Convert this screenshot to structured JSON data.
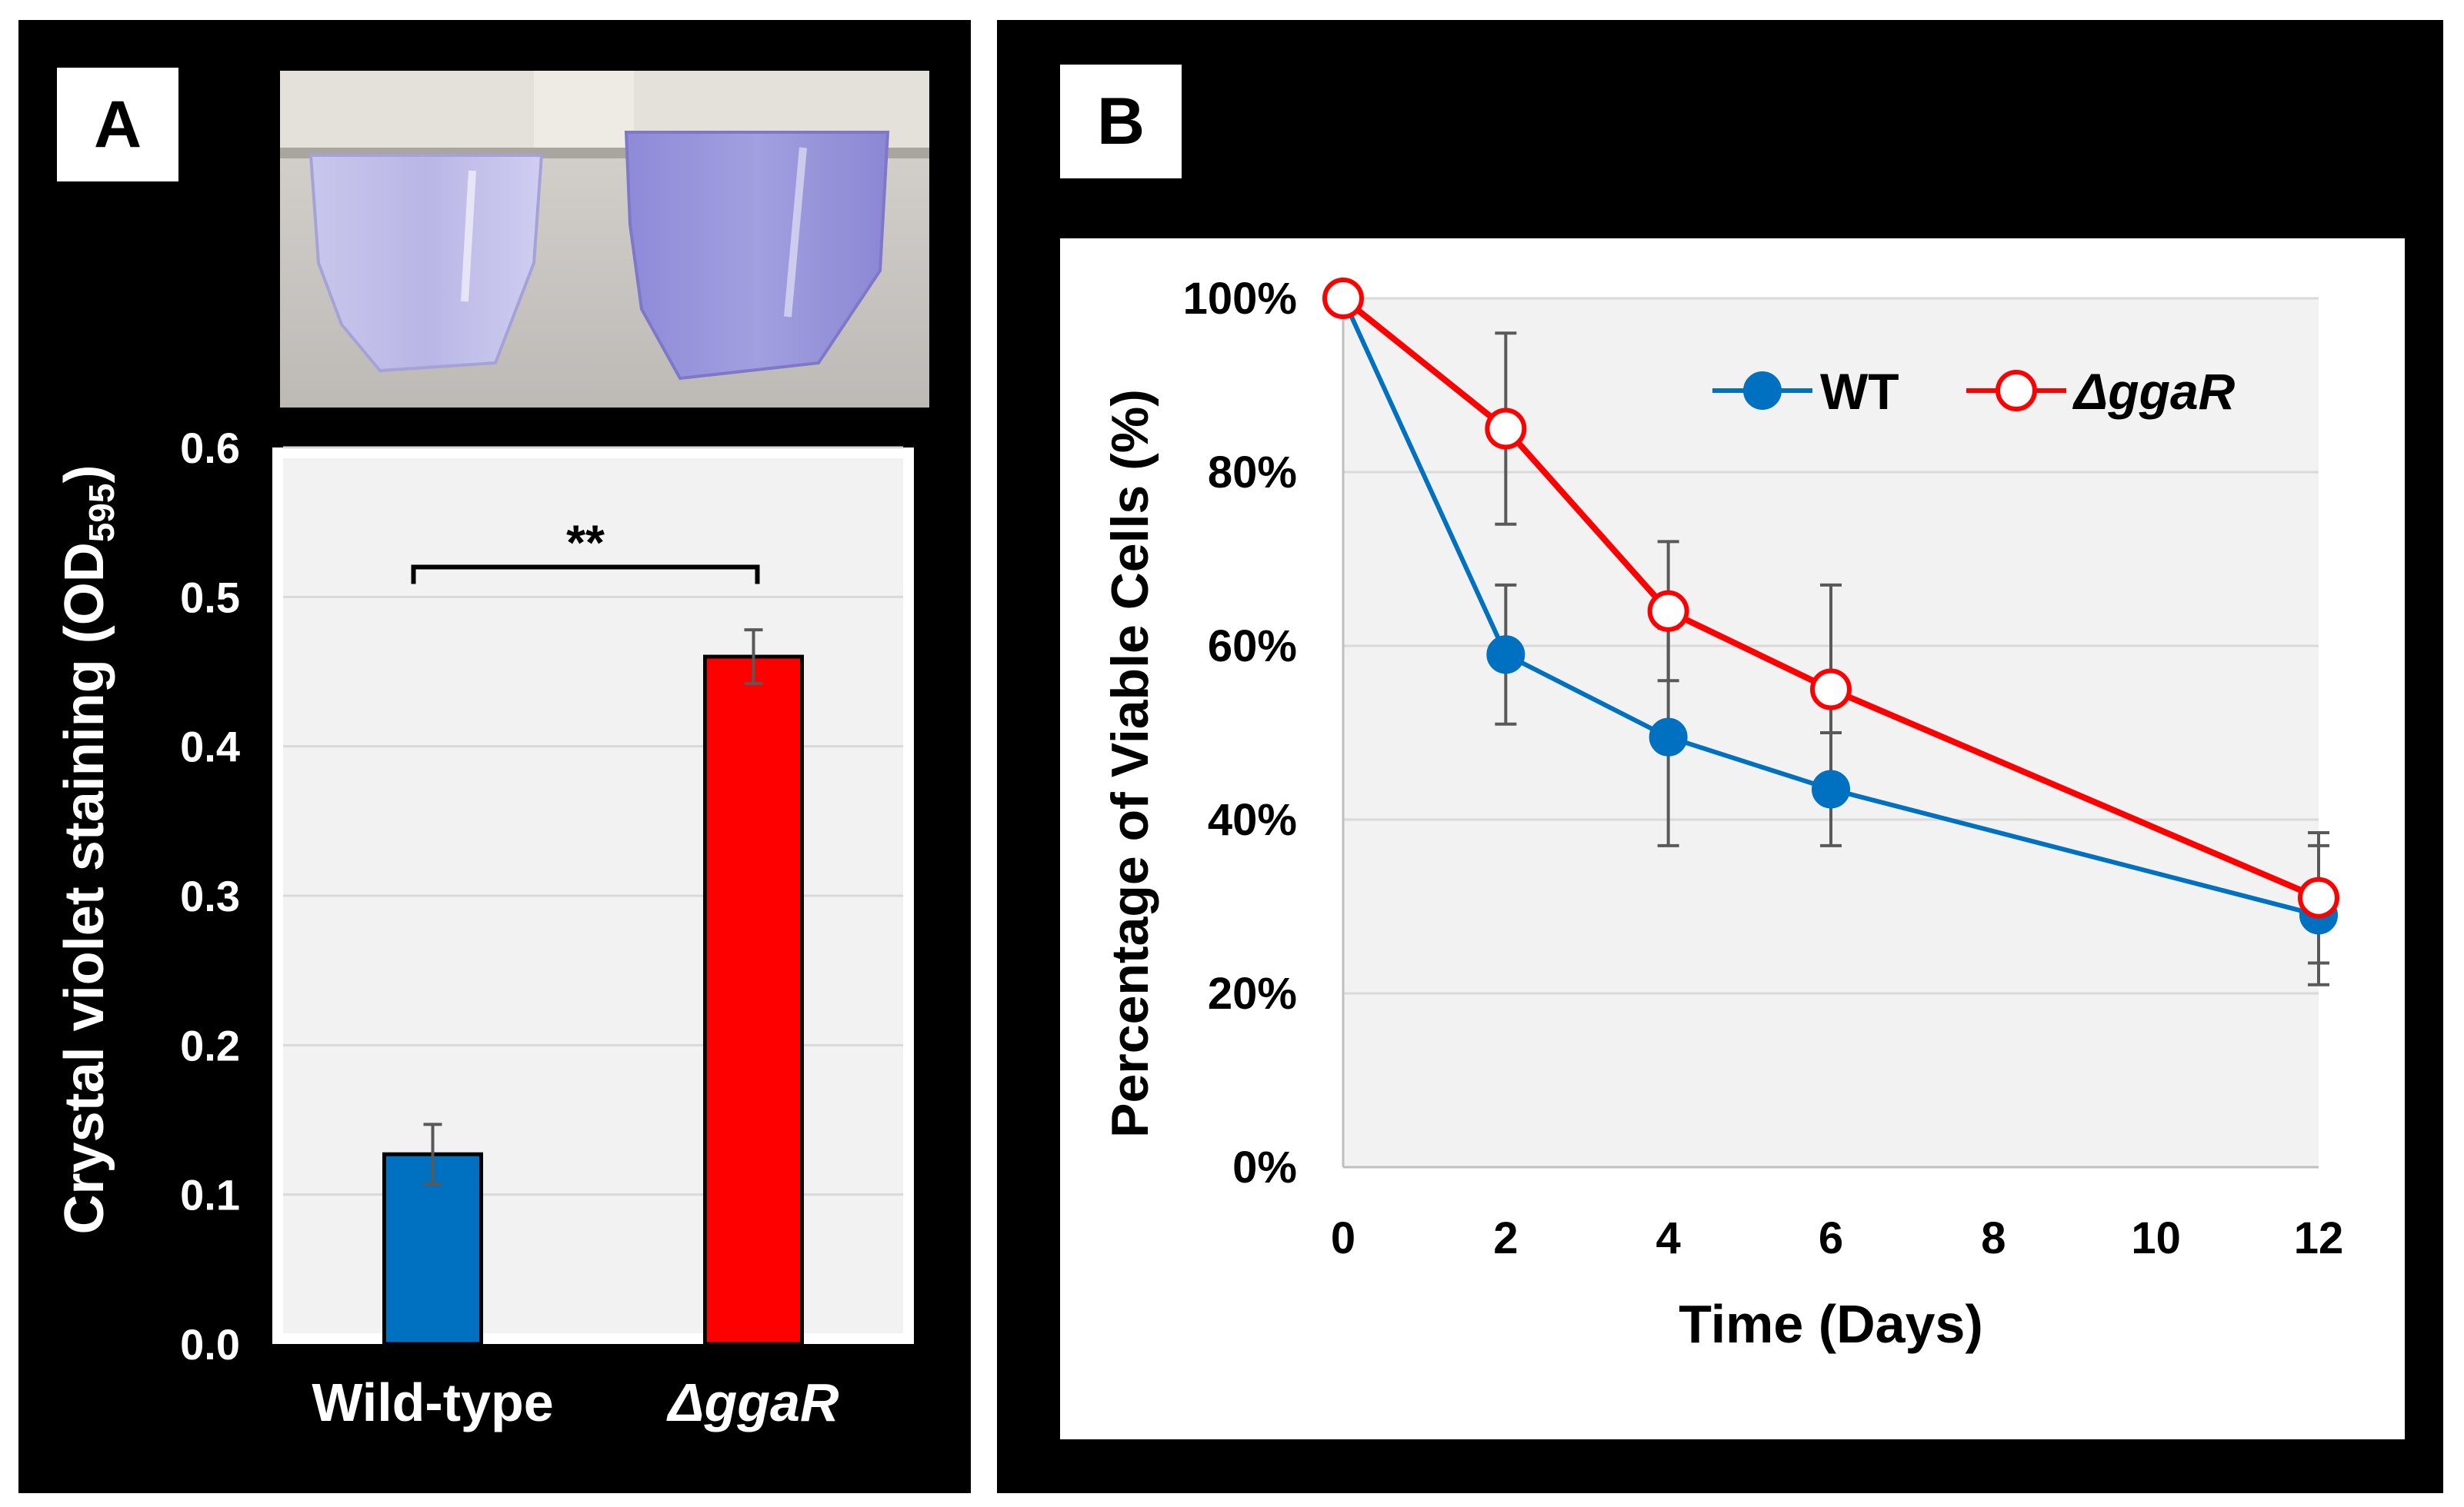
{
  "panel_a": {
    "label": "A",
    "photo_description_icon": "tube-photo",
    "significance": "**"
  },
  "panel_b": {
    "label": "B"
  },
  "chart_data": [
    {
      "type": "bar",
      "title": "",
      "ylabel": "Crystal violet staining (OD595)",
      "ylabel_main": "Crystal violet staining (OD",
      "ylabel_sub": "595",
      "ylabel_close": ")",
      "xlabel": "",
      "categories": [
        "Wild-type",
        "ΔggaR"
      ],
      "values": [
        0.127,
        0.46
      ],
      "errors": [
        0.02,
        0.018
      ],
      "colors": [
        "#0070C0",
        "#FF0000"
      ],
      "ylim": [
        0,
        0.6
      ],
      "yticks": [
        "0.0",
        "0.1",
        "0.2",
        "0.3",
        "0.4",
        "0.5",
        "0.6"
      ],
      "grid": true
    },
    {
      "type": "line",
      "title": "",
      "xlabel": "Time (Days)",
      "ylabel": "Percentage of Viable Cells (%)",
      "xlim": [
        0,
        12
      ],
      "ylim": [
        0,
        100
      ],
      "xticks": [
        "0",
        "2",
        "4",
        "6",
        "8",
        "10",
        "12"
      ],
      "yticks": [
        "0%",
        "20%",
        "40%",
        "60%",
        "80%",
        "100%"
      ],
      "legend_position": "top-right",
      "grid": true,
      "series": [
        {
          "name": "WT",
          "color": "#0070C0",
          "marker": "filled-circle",
          "x": [
            0,
            2,
            4,
            6,
            12
          ],
          "values": [
            100,
            59,
            49.5,
            43.5,
            29
          ],
          "errors": [
            0,
            8,
            12.5,
            6.5,
            8
          ]
        },
        {
          "name": "ΔggaR",
          "color": "#FF0000",
          "marker": "open-circle",
          "x": [
            0,
            2,
            4,
            6,
            12
          ],
          "values": [
            100,
            85,
            64,
            55,
            31
          ],
          "errors": [
            0,
            11,
            8,
            12,
            7.5
          ]
        }
      ]
    }
  ]
}
